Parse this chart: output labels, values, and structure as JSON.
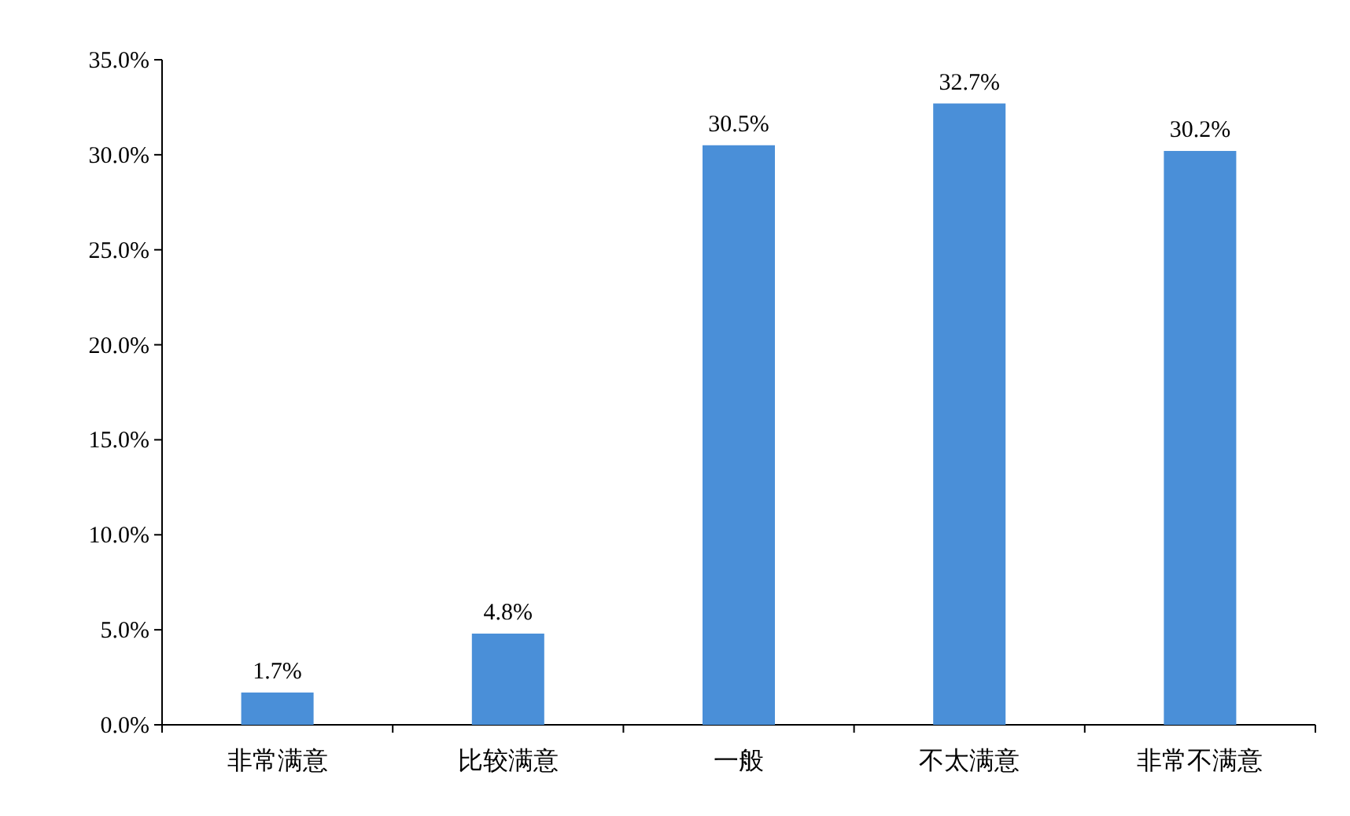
{
  "chart_data": {
    "type": "bar",
    "categories": [
      "非常满意",
      "比较满意",
      "一般",
      "不太满意",
      "非常不满意"
    ],
    "values": [
      1.7,
      4.8,
      30.5,
      32.7,
      30.2
    ],
    "value_labels": [
      "1.7%",
      "4.8%",
      "30.5%",
      "32.7%",
      "30.2%"
    ],
    "color": "#4a8fd8",
    "ylim": [
      0,
      35
    ],
    "yticks": [
      {
        "value": 0,
        "label": "0.0%"
      },
      {
        "value": 5,
        "label": "5.0%"
      },
      {
        "value": 10,
        "label": "10.0%"
      },
      {
        "value": 15,
        "label": "15.0%"
      },
      {
        "value": 20,
        "label": "20.0%"
      },
      {
        "value": 25,
        "label": "25.0%"
      },
      {
        "value": 30,
        "label": "30.0%"
      },
      {
        "value": 35,
        "label": "35.0%"
      }
    ]
  }
}
